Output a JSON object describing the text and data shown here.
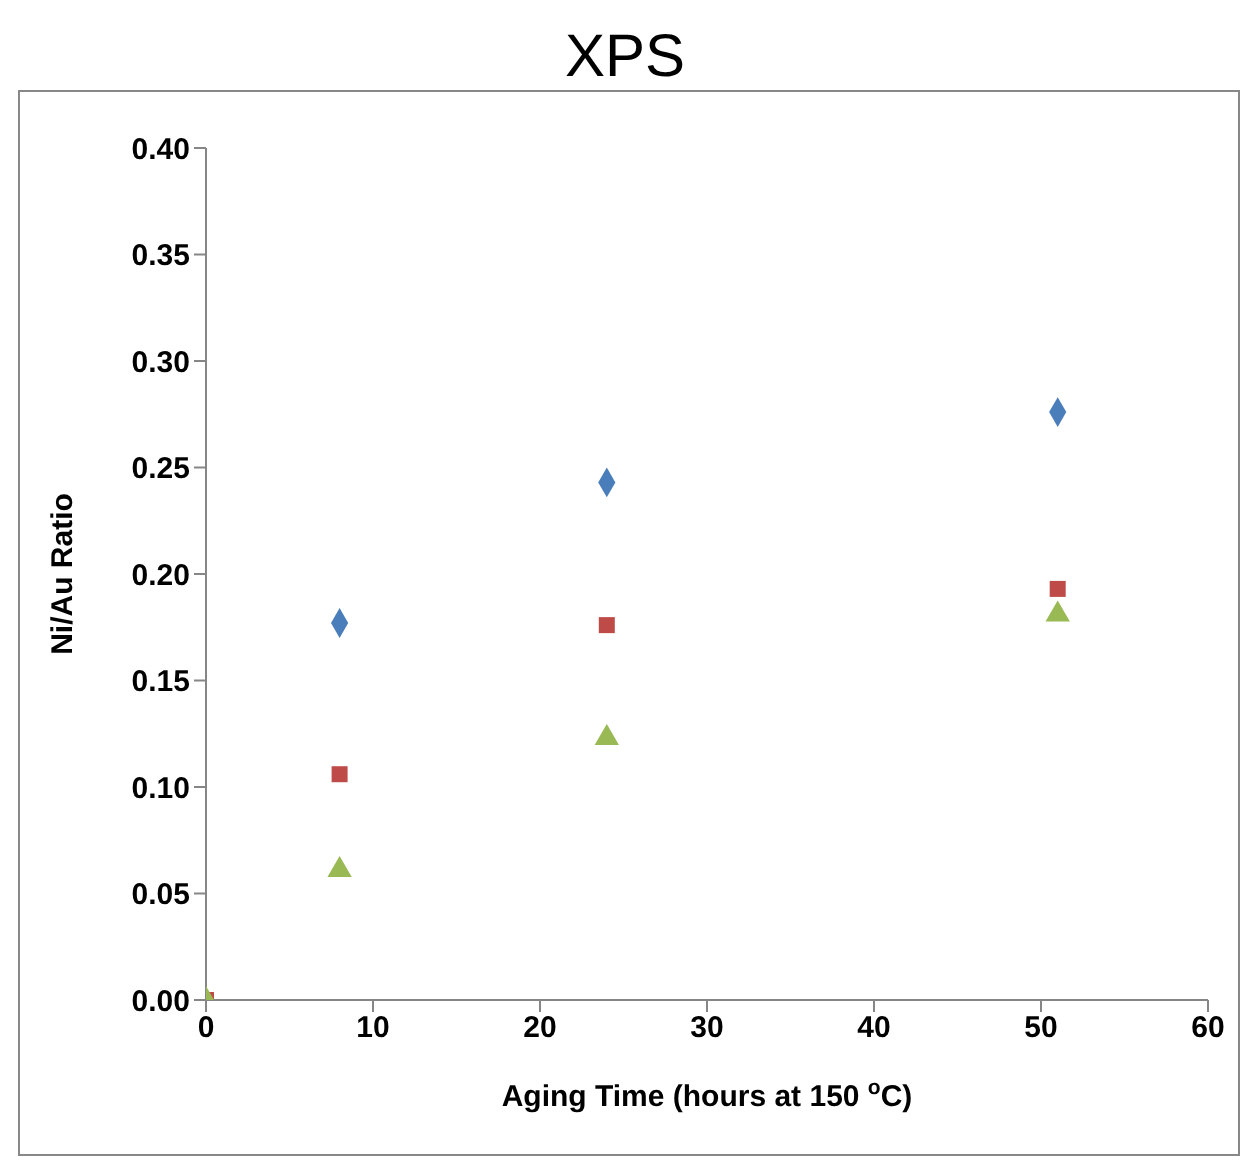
{
  "chart_data": {
    "type": "scatter",
    "title": "XPS",
    "xlabel": "Aging Time (hours at 150 $^{o}$C)",
    "ylabel": "Ni/Au Ratio",
    "xlim": [
      0,
      60
    ],
    "xticks": [
      0,
      10,
      20,
      30,
      40,
      50,
      60
    ],
    "ylim": [
      0,
      0.4
    ],
    "yticks": [
      {
        "value": 0,
        "label": "0.00"
      },
      {
        "value": 0.05,
        "label": "0.05"
      },
      {
        "value": 0.1,
        "label": "0.10"
      },
      {
        "value": 0.15,
        "label": "0.15"
      },
      {
        "value": 0.2,
        "label": "0.20"
      },
      {
        "value": 0.25,
        "label": "0.25"
      },
      {
        "value": 0.3,
        "label": "0.30"
      },
      {
        "value": 0.35,
        "label": "0.35"
      },
      {
        "value": 0.4,
        "label": "0.40"
      }
    ],
    "series": [
      {
        "color": "#4a7ebb",
        "marker": "diamond",
        "x": [
          8,
          24,
          51
        ],
        "values": [
          0.177,
          0.243,
          0.276
        ]
      },
      {
        "color": "#be4b48",
        "marker": "square",
        "x": [
          0,
          8,
          24,
          51
        ],
        "values": [
          0,
          0.106,
          0.176,
          0.193
        ]
      },
      {
        "color": "#98b954",
        "marker": "triangle",
        "x": [
          0,
          8,
          24,
          51
        ],
        "values": [
          0,
          0.061,
          0.123,
          0.181
        ]
      }
    ]
  }
}
